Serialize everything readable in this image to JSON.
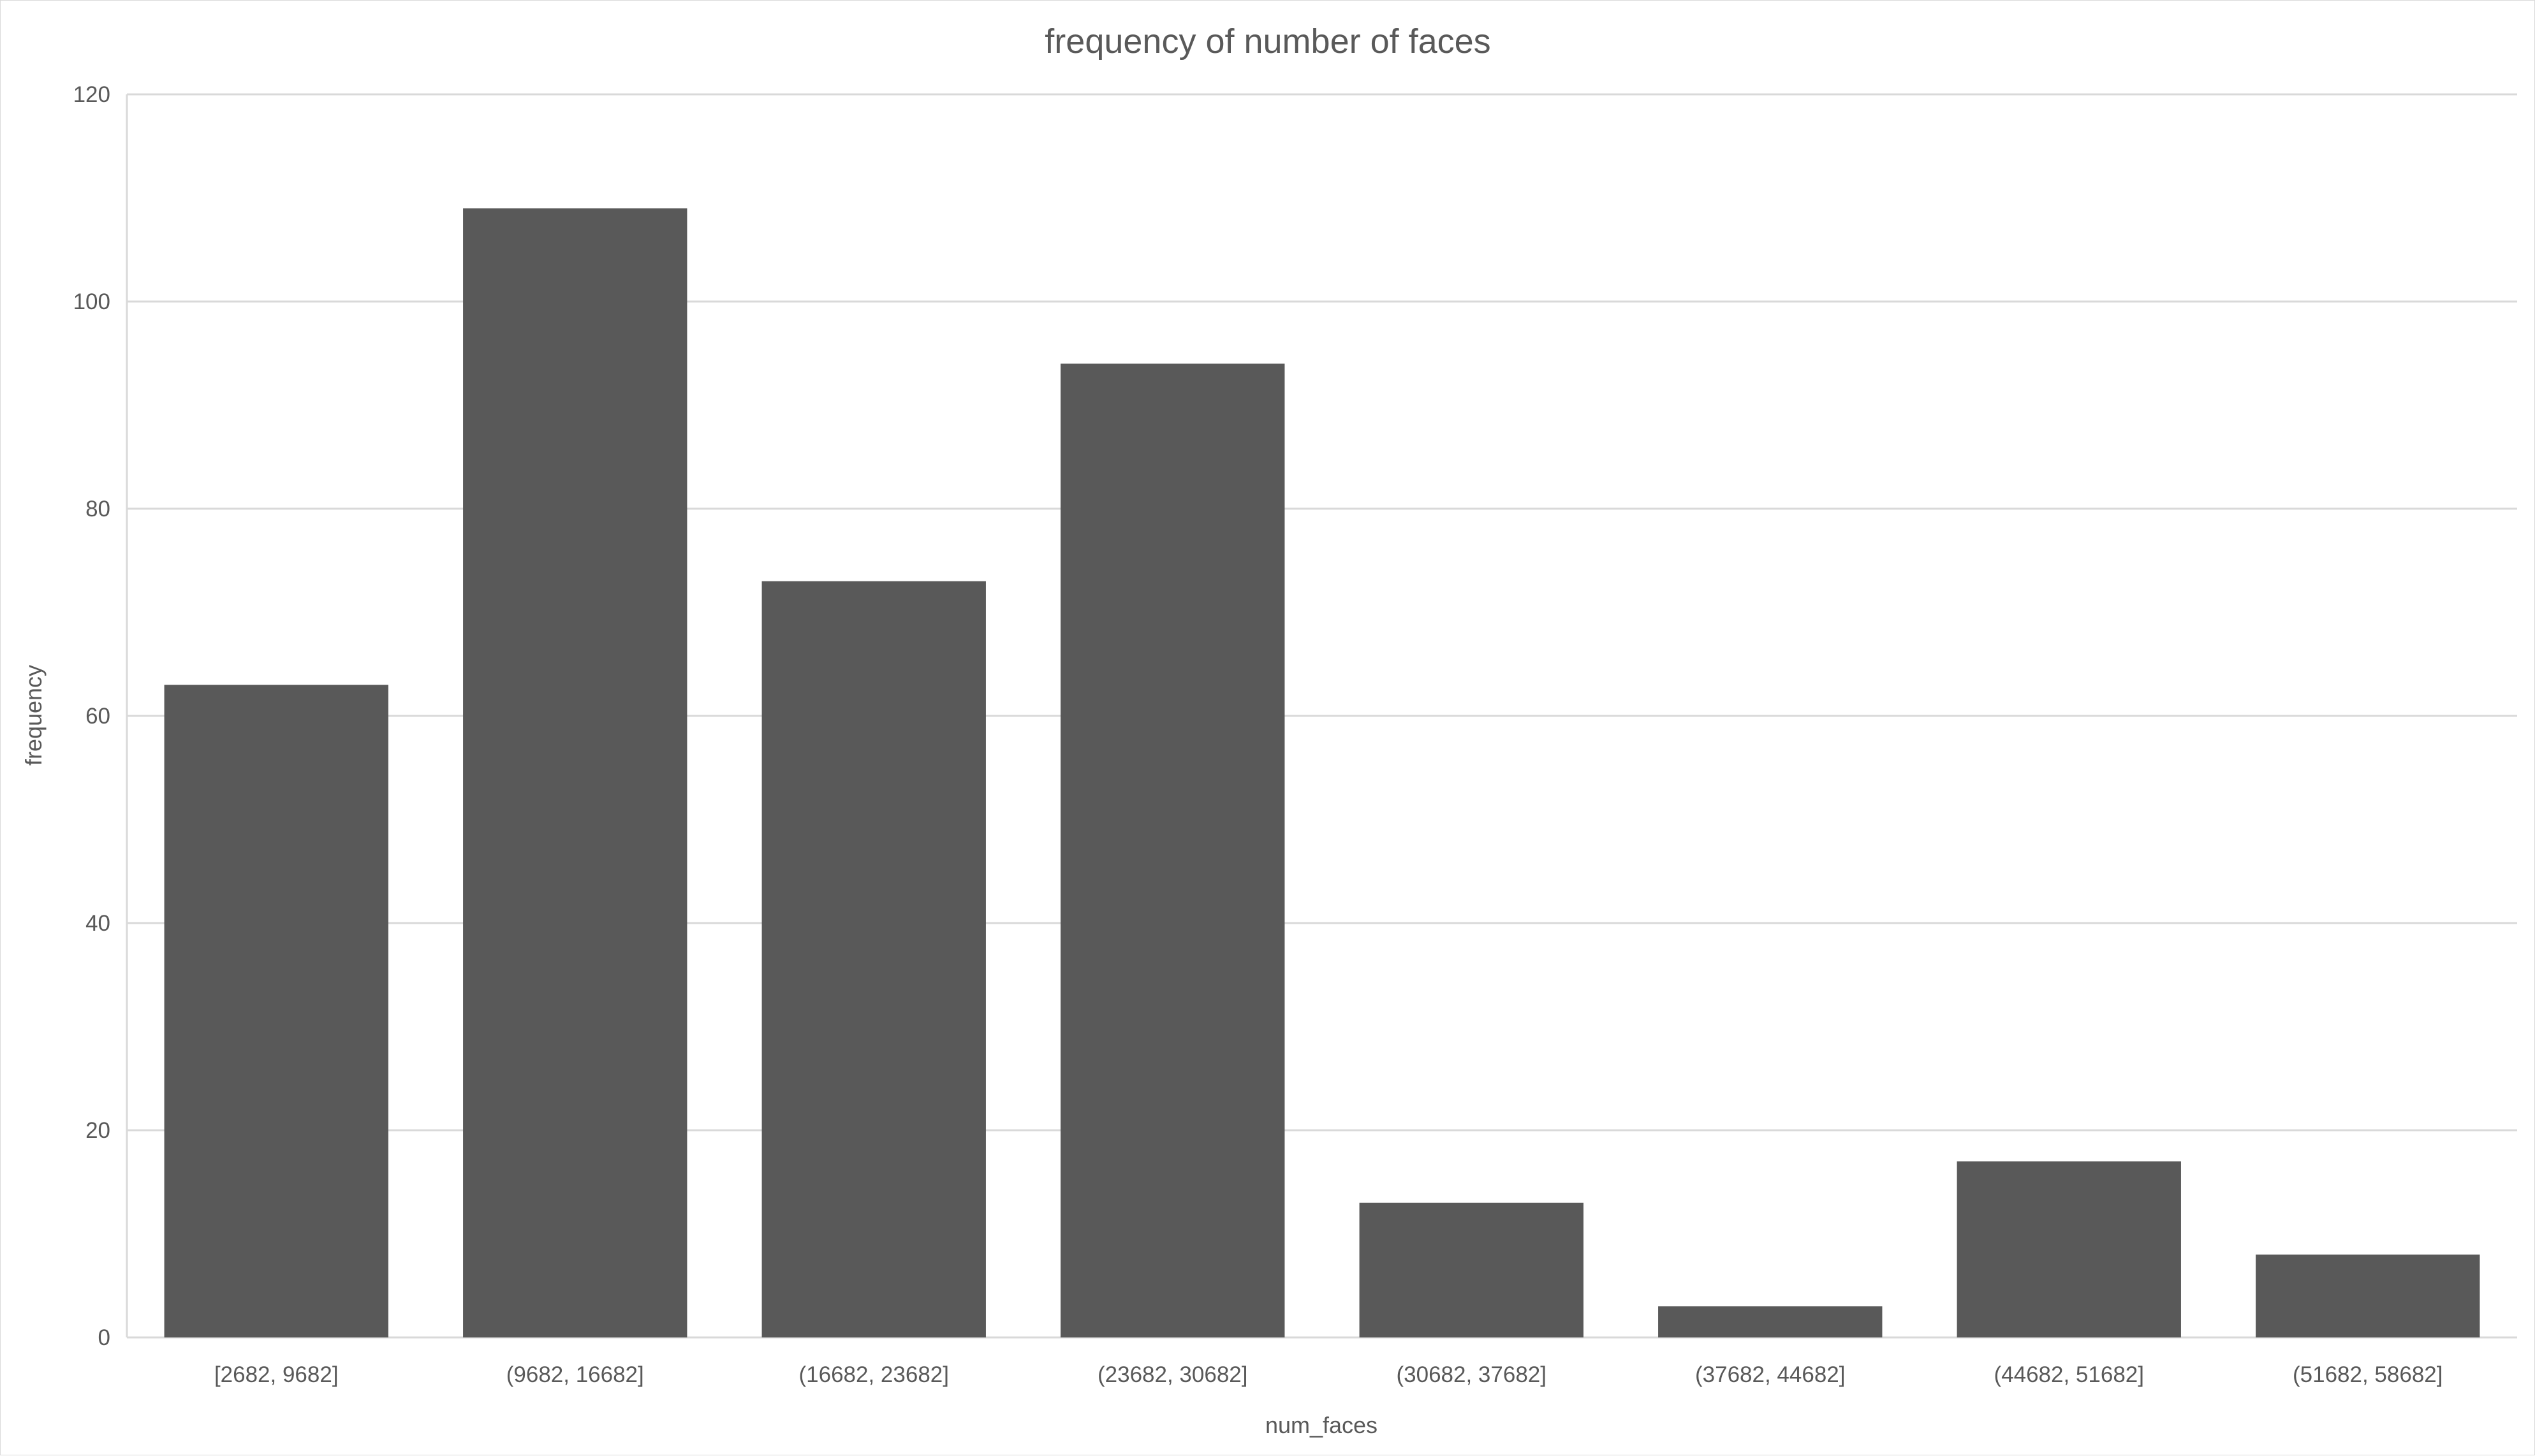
{
  "chart_data": {
    "type": "bar",
    "title": "frequency of number of faces",
    "xlabel": "num_faces",
    "ylabel": "frequency",
    "categories": [
      "[2682, 9682]",
      "(9682, 16682]",
      "(16682, 23682]",
      "(23682, 30682]",
      "(30682, 37682]",
      "(37682, 44682]",
      "(44682, 51682]",
      "(51682, 58682]"
    ],
    "values": [
      63,
      109,
      73,
      94,
      13,
      3,
      17,
      8
    ],
    "ylim": [
      0,
      120
    ],
    "yticks": [
      0,
      20,
      40,
      60,
      80,
      100,
      120
    ],
    "grid": true,
    "legend": "none",
    "bar_color": "#595959",
    "grid_color": "#d9d9d9",
    "text_color": "#595959"
  }
}
